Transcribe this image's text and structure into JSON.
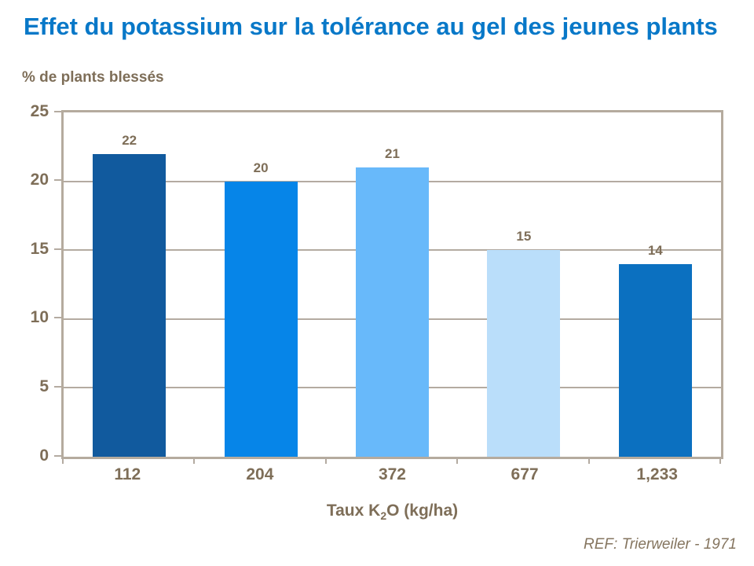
{
  "title": {
    "text": "Effet du potassium sur la tolérance au gel des jeunes plants",
    "color": "#0878c8"
  },
  "yaxis_unit_label": "% de plants blessés",
  "xaxis_title": {
    "prefix": "Taux K",
    "subscript": "2",
    "suffix": "O (kg/ha)"
  },
  "reference": "REF: Trierweiler - 1971",
  "chart_data": {
    "type": "bar",
    "title": "Effet du potassium sur la tolérance au gel des jeunes plants",
    "categories": [
      "112",
      "204",
      "372",
      "677",
      "1,233"
    ],
    "values": [
      22,
      20,
      21,
      15,
      14
    ],
    "bar_colors": [
      "#115a9e",
      "#0685e8",
      "#68b9fa",
      "#badefa",
      "#0b70c0"
    ],
    "xlabel": "Taux K2O (kg/ha)",
    "ylabel": "% de plants blessés",
    "ylim": [
      0,
      25
    ],
    "yticks": [
      0,
      5,
      10,
      15,
      20,
      25
    ],
    "grid": true,
    "legend": false,
    "data_labels_shown": true,
    "text_color": "#7e6e58",
    "grid_color": "#b4aba1",
    "plot_border_color": "#b5ab9e"
  }
}
